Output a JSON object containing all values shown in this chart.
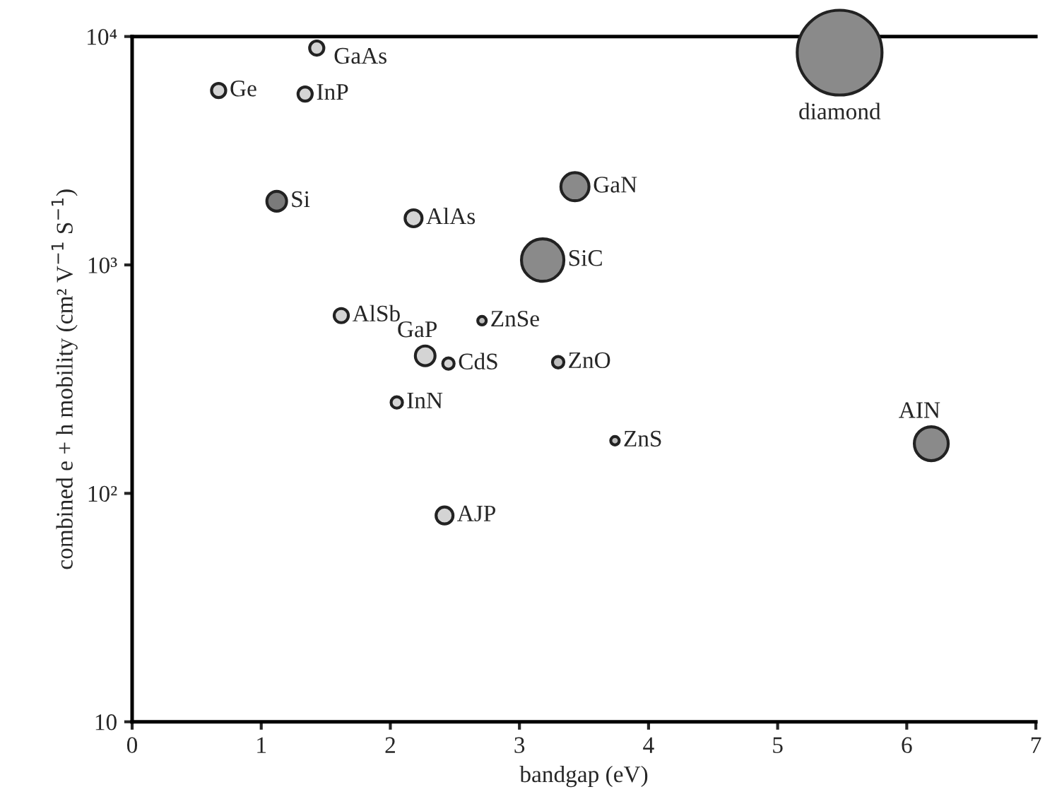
{
  "chart_data": {
    "type": "bubble",
    "xlabel": "bandgap (eV)",
    "ylabel": "combined e + h mobility (cm² V$^{−1}$ S$^{−1}$)",
    "log": "y",
    "grid": false,
    "legend": false,
    "xlim": [
      0,
      7
    ],
    "xticks": [
      0,
      1,
      2,
      3,
      4,
      5,
      6,
      7
    ],
    "ylim": [
      10,
      10000
    ],
    "yticks": [
      {
        "value": 10,
        "label": "10"
      },
      {
        "value": 100,
        "label": "10²"
      },
      {
        "value": 1000,
        "label": "10³"
      },
      {
        "value": 10000,
        "label": "10⁴"
      }
    ],
    "series": [
      {
        "name": "GaAs",
        "color": "#d4d4d4",
        "x": [
          1.43
        ],
        "values": [
          8900
        ],
        "sizes": [
          0.028
        ]
      },
      {
        "name": "Ge",
        "color": "#d4d4d4",
        "x": [
          0.67
        ],
        "values": [
          5800
        ],
        "sizes": [
          0.028
        ]
      },
      {
        "name": "InP",
        "color": "#d4d4d4",
        "x": [
          1.34
        ],
        "values": [
          5600
        ],
        "sizes": [
          0.028
        ]
      },
      {
        "name": "diamond",
        "color": "#8a8a8a",
        "x": [
          5.48
        ],
        "values": [
          8500
        ],
        "sizes": [
          1
        ]
      },
      {
        "name": "Si",
        "color": "#7a7a7a",
        "x": [
          1.12
        ],
        "values": [
          1900
        ],
        "sizes": [
          0.054
        ]
      },
      {
        "name": "GaN",
        "color": "#8a8a8a",
        "x": [
          3.43
        ],
        "values": [
          2200
        ],
        "sizes": [
          0.11
        ]
      },
      {
        "name": "AlAs",
        "color": "#d4d4d4",
        "x": [
          2.18
        ],
        "values": [
          1600
        ],
        "sizes": [
          0.04
        ]
      },
      {
        "name": "SiC",
        "color": "#8a8a8a",
        "x": [
          3.18
        ],
        "values": [
          1050
        ],
        "sizes": [
          0.25
        ]
      },
      {
        "name": "AlSb",
        "color": "#d4d4d4",
        "x": [
          1.62
        ],
        "values": [
          600
        ],
        "sizes": [
          0.028
        ]
      },
      {
        "name": "ZnSe",
        "color": "#bdbdbd",
        "x": [
          2.71
        ],
        "values": [
          570
        ],
        "sizes": [
          0.01
        ]
      },
      {
        "name": "GaP",
        "color": "#d4d4d4",
        "x": [
          2.27
        ],
        "values": [
          400
        ],
        "sizes": [
          0.054
        ]
      },
      {
        "name": "CdS",
        "color": "#d4d4d4",
        "x": [
          2.45
        ],
        "values": [
          370
        ],
        "sizes": [
          0.018
        ]
      },
      {
        "name": "ZnO",
        "color": "#bdbdbd",
        "x": [
          3.3
        ],
        "values": [
          375
        ],
        "sizes": [
          0.018
        ]
      },
      {
        "name": "InN",
        "color": "#d4d4d4",
        "x": [
          2.05
        ],
        "values": [
          250
        ],
        "sizes": [
          0.018
        ]
      },
      {
        "name": "ZnS",
        "color": "#bdbdbd",
        "x": [
          3.74
        ],
        "values": [
          170
        ],
        "sizes": [
          0.01
        ]
      },
      {
        "name": "AIN",
        "color": "#8a8a8a",
        "x": [
          6.19
        ],
        "values": [
          165
        ],
        "sizes": [
          0.16
        ]
      },
      {
        "name": "AJP",
        "color": "#d4d4d4",
        "x": [
          2.42
        ],
        "values": [
          80
        ],
        "sizes": [
          0.04
        ]
      }
    ]
  }
}
